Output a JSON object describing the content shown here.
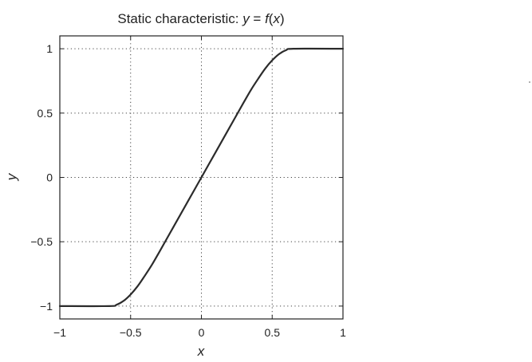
{
  "chart_data": {
    "type": "line",
    "title": "Static characteristic: y = f(x)",
    "title_parts": {
      "prefix": "Static characteristic: ",
      "y": "y",
      "eq": " = ",
      "f": "f",
      "paren_open": "(",
      "x": "x",
      "paren_close": ")"
    },
    "xlabel": "x",
    "ylabel": "y",
    "xlim": [
      -1,
      1
    ],
    "ylim": [
      -1.1,
      1.1
    ],
    "grid": true,
    "x_ticks": [
      {
        "value": -1,
        "label": "−1"
      },
      {
        "value": -0.5,
        "label": "−0.5"
      },
      {
        "value": 0,
        "label": "0"
      },
      {
        "value": 0.5,
        "label": "0.5"
      },
      {
        "value": 1,
        "label": "1"
      }
    ],
    "y_ticks": [
      {
        "value": -1,
        "label": "−1"
      },
      {
        "value": -0.5,
        "label": "−0.5"
      },
      {
        "value": 0,
        "label": "0"
      },
      {
        "value": 0.5,
        "label": "0.5"
      },
      {
        "value": 1,
        "label": "1"
      }
    ],
    "series": [
      {
        "color": "#2b2b2b",
        "x": [
          -1,
          -0.65,
          -0.6,
          -0.55,
          -0.5,
          -0.45,
          -0.4,
          -0.35,
          -0.3,
          -0.2,
          -0.1,
          0,
          0.1,
          0.2,
          0.3,
          0.35,
          0.4,
          0.45,
          0.5,
          0.55,
          0.6,
          0.65,
          1
        ],
        "y": [
          -1,
          -1,
          -0.99,
          -0.96,
          -0.91,
          -0.845,
          -0.765,
          -0.68,
          -0.585,
          -0.39,
          -0.195,
          0,
          0.195,
          0.39,
          0.585,
          0.68,
          0.765,
          0.845,
          0.91,
          0.96,
          0.99,
          1,
          1
        ]
      }
    ]
  }
}
